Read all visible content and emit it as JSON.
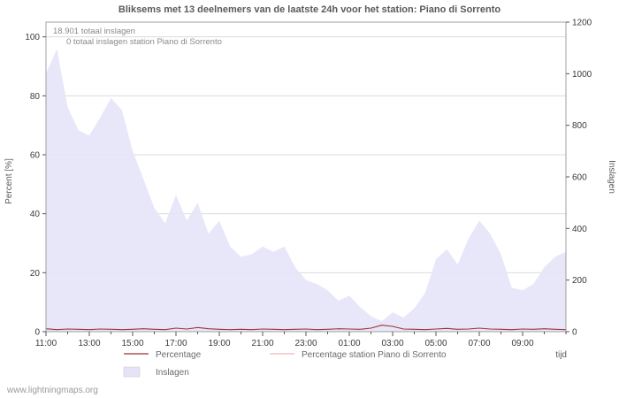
{
  "page": {
    "watermark": "www.lightningmaps.org"
  },
  "chart": {
    "title": "Bliksems met 13 deelnemers van de laatste 24h voor het station: Piano di Sorrento",
    "annotation_total": "18.901 totaal inslagen",
    "annotation_station": "0 totaal inslagen station Piano di Sorrento",
    "left_axis_label": "Percent  [%]",
    "right_axis_label": "Inslagen",
    "x_axis_label": "tijd",
    "legend": [
      {
        "label": "Percentage",
        "type": "line",
        "color": "#a03232"
      },
      {
        "label": "Percentage station Piano di Sorrento",
        "type": "line",
        "color": "#f2b8b8"
      },
      {
        "label": "Inslagen",
        "type": "area",
        "color": "#e6e3f8"
      }
    ]
  },
  "chart_data": {
    "type": "area",
    "title": "Bliksems met 13 deelnemers van de laatste 24h voor het station: Piano di Sorrento",
    "x_unit": "hours since 11:00",
    "x_range": [
      0,
      24
    ],
    "x_step": 0.5,
    "x_tick_labels": [
      "11:00",
      "13:00",
      "15:00",
      "17:00",
      "19:00",
      "21:00",
      "23:00",
      "01:00",
      "03:00",
      "05:00",
      "07:00",
      "09:00"
    ],
    "x_tick_hours": [
      0,
      2,
      4,
      6,
      8,
      10,
      12,
      14,
      16,
      18,
      20,
      22
    ],
    "left_ylabel": "Percent [%]",
    "left_ylim": [
      0,
      105
    ],
    "left_ticks": [
      0,
      20,
      40,
      60,
      80,
      100
    ],
    "right_ylabel": "Inslagen",
    "right_ylim": [
      0,
      1200
    ],
    "right_ticks": [
      0,
      200,
      400,
      600,
      800,
      1000,
      1200
    ],
    "grid": true,
    "legend_position": "bottom",
    "series": [
      {
        "name": "Inslagen",
        "axis": "right",
        "style": "area",
        "color": "#e6e3f8",
        "values": [
          1000,
          1095,
          870,
          780,
          760,
          830,
          905,
          860,
          700,
          590,
          480,
          420,
          530,
          430,
          500,
          380,
          430,
          330,
          290,
          300,
          330,
          310,
          330,
          250,
          200,
          185,
          160,
          120,
          140,
          95,
          60,
          40,
          75,
          55,
          90,
          150,
          280,
          320,
          260,
          360,
          430,
          380,
          300,
          170,
          160,
          185,
          250,
          290,
          310
        ]
      },
      {
        "name": "Percentage",
        "axis": "left",
        "style": "line",
        "color": "#a03232",
        "values": [
          1.0,
          0.7,
          0.9,
          0.8,
          0.7,
          0.9,
          0.8,
          0.7,
          0.8,
          1.0,
          0.8,
          0.7,
          1.2,
          0.9,
          1.4,
          1.0,
          0.8,
          0.7,
          0.8,
          0.7,
          0.9,
          0.8,
          0.7,
          0.8,
          0.9,
          0.7,
          0.8,
          1.0,
          0.9,
          0.8,
          1.2,
          2.2,
          1.8,
          0.9,
          0.8,
          0.7,
          0.9,
          1.1,
          0.8,
          0.9,
          1.2,
          0.9,
          0.8,
          0.7,
          0.9,
          0.8,
          1.0,
          0.8,
          0.7
        ]
      },
      {
        "name": "Percentage station Piano di Sorrento",
        "axis": "left",
        "style": "line",
        "color": "#f2b8b8",
        "values": [
          0,
          0,
          0,
          0,
          0,
          0,
          0,
          0,
          0,
          0,
          0,
          0,
          0,
          0,
          0,
          0,
          0,
          0,
          0,
          0,
          0,
          0,
          0,
          0,
          0,
          0,
          0,
          0,
          0,
          0,
          0,
          0,
          0,
          0,
          0,
          0,
          0,
          0,
          0,
          0,
          0,
          0,
          0,
          0,
          0,
          0,
          0,
          0,
          0
        ]
      }
    ]
  }
}
